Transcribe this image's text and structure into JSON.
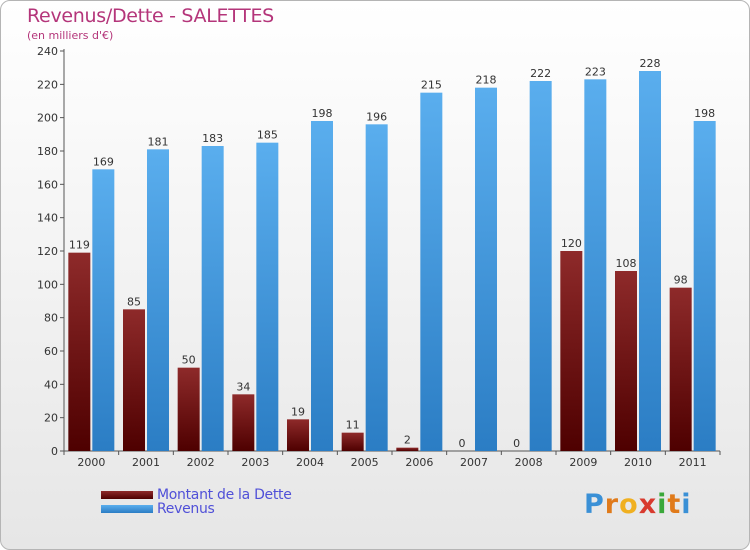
{
  "chart_data": {
    "type": "bar",
    "title": "Revenus/Dette - SALETTES",
    "subtitle": "(en milliers d'€)",
    "categories": [
      "2000",
      "2001",
      "2002",
      "2003",
      "2004",
      "2005",
      "2006",
      "2007",
      "2008",
      "2009",
      "2010",
      "2011"
    ],
    "series": [
      {
        "name": "Montant de la Dette",
        "color": "#7a1616",
        "values": [
          119,
          85,
          50,
          34,
          19,
          11,
          2,
          0,
          0,
          120,
          108,
          98
        ]
      },
      {
        "name": "Revenus",
        "color": "#4fa3e6",
        "values": [
          169,
          181,
          183,
          185,
          198,
          196,
          215,
          218,
          222,
          223,
          228,
          198
        ]
      }
    ],
    "yticks": [
      0,
      20,
      40,
      60,
      80,
      100,
      120,
      140,
      160,
      180,
      200,
      220,
      240
    ],
    "ylim": [
      0,
      240
    ],
    "grid": false,
    "legend": "bottom-left"
  },
  "logo": {
    "letters": [
      "P",
      "r",
      "o",
      "x",
      "i",
      "t",
      "i"
    ],
    "colors": [
      "#3a90d6",
      "#e07a1a",
      "#f0b020",
      "#d83a2e",
      "#3aa83a",
      "#e07a1a",
      "#3a90d6"
    ]
  }
}
